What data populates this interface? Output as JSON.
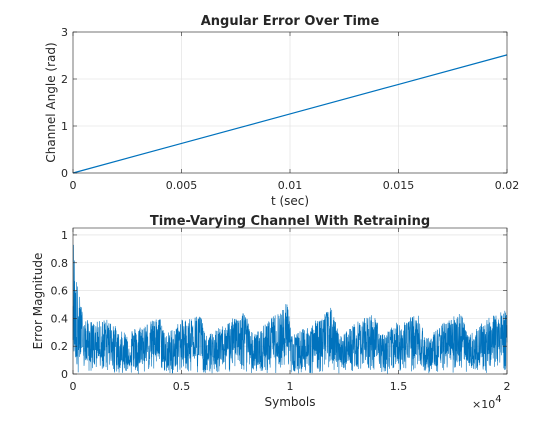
{
  "chart_data": [
    {
      "type": "line",
      "title": "Angular Error Over Time",
      "xlabel": "t (sec)",
      "ylabel": "Channel Angle (rad)",
      "xlim": [
        0,
        0.02
      ],
      "ylim": [
        0,
        3
      ],
      "x_ticks": [
        0,
        0.005,
        0.01,
        0.015,
        0.02
      ],
      "x_tick_labels": [
        "0",
        "0.005",
        "0.01",
        "0.015",
        "0.02"
      ],
      "y_ticks": [
        0,
        1,
        2,
        3
      ],
      "y_tick_labels": [
        "0",
        "1",
        "2",
        "3"
      ],
      "grid": true,
      "color": "#0072bd",
      "series": [
        {
          "x": [
            0,
            0.005,
            0.01,
            0.015,
            0.02
          ],
          "y": [
            0,
            0.628,
            1.257,
            1.885,
            2.513
          ]
        }
      ]
    },
    {
      "type": "line",
      "title": "Time-Varying Channel With Retraining",
      "xlabel": "Symbols",
      "ylabel": "Error Magnitude",
      "x_exponent": "×10",
      "x_exponent_power": "4",
      "xlim": [
        0,
        2
      ],
      "ylim": [
        0,
        1.05
      ],
      "x_ticks": [
        0,
        0.5,
        1,
        1.5,
        2
      ],
      "x_tick_labels": [
        "0",
        "0.5",
        "1",
        "1.5",
        "2"
      ],
      "y_ticks": [
        0,
        0.2,
        0.4,
        0.6,
        0.8,
        1
      ],
      "y_tick_labels": [
        "0",
        "0.2",
        "0.4",
        "0.6",
        "0.8",
        "1"
      ],
      "grid": true,
      "color": "#0072bd",
      "envelope": {
        "x": [
          0,
          0.015,
          0.05,
          0.1,
          0.15,
          0.19,
          0.21,
          0.3,
          0.4,
          0.43,
          0.5,
          0.59,
          0.61,
          0.7,
          0.79,
          0.83,
          0.9,
          0.99,
          1.01,
          1.1,
          1.19,
          1.23,
          1.3,
          1.39,
          1.42,
          1.5,
          1.59,
          1.63,
          1.7,
          1.79,
          1.82,
          1.9,
          2.0
        ],
        "upper": [
          1.02,
          0.7,
          0.4,
          0.37,
          0.4,
          0.36,
          0.3,
          0.34,
          0.41,
          0.29,
          0.39,
          0.43,
          0.27,
          0.36,
          0.46,
          0.28,
          0.38,
          0.52,
          0.28,
          0.36,
          0.48,
          0.27,
          0.37,
          0.44,
          0.28,
          0.38,
          0.43,
          0.26,
          0.36,
          0.46,
          0.27,
          0.39,
          0.47
        ],
        "center": [
          0.5,
          0.3,
          0.2,
          0.18,
          0.22,
          0.25,
          0.1,
          0.17,
          0.25,
          0.1,
          0.2,
          0.27,
          0.1,
          0.19,
          0.28,
          0.1,
          0.2,
          0.3,
          0.1,
          0.19,
          0.28,
          0.1,
          0.19,
          0.27,
          0.1,
          0.2,
          0.27,
          0.1,
          0.19,
          0.27,
          0.1,
          0.2,
          0.28
        ]
      }
    }
  ]
}
